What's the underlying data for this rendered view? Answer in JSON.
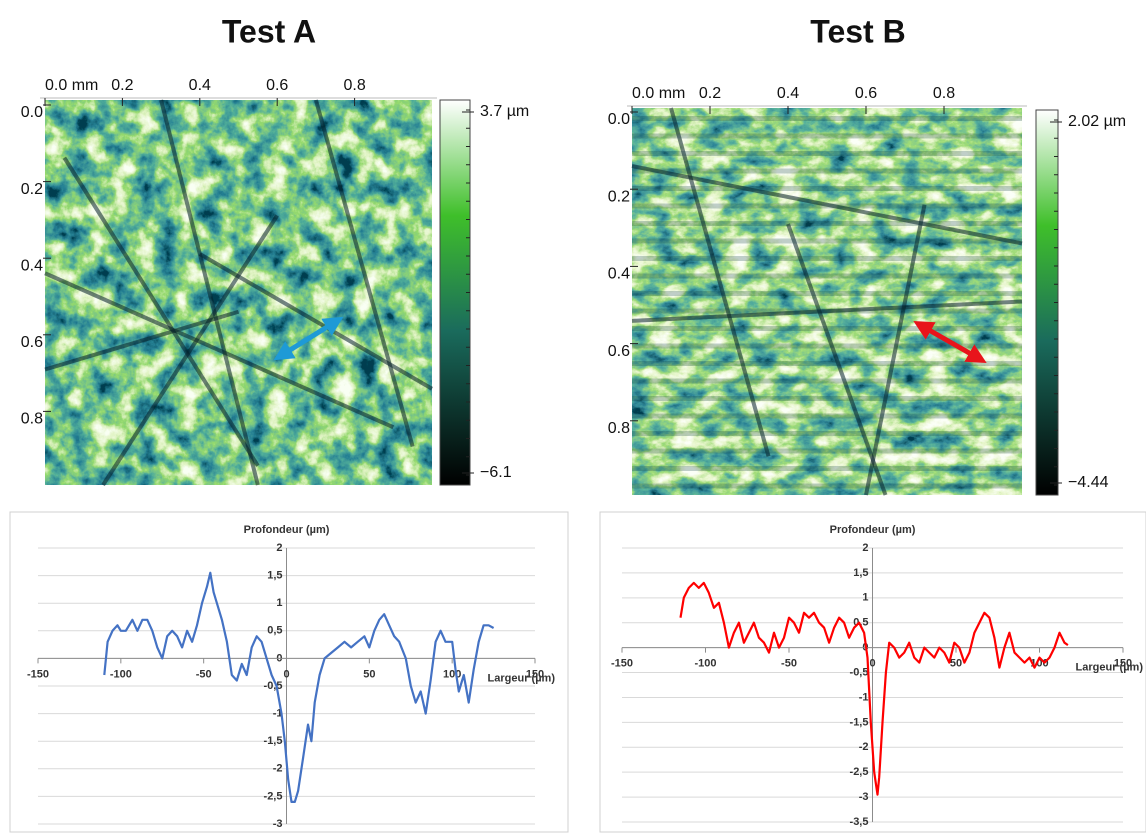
{
  "chart_data": [
    {
      "type": "surface",
      "title": "Test A",
      "xlim": [
        0,
        1
      ],
      "xticks": [
        {
          "value": 0,
          "label": "0.0 mm"
        },
        0.2,
        0.4,
        0.6,
        0.8
      ],
      "ylim": [
        0,
        1
      ],
      "yticks": [
        {
          "value": 0,
          "label": "0.0"
        },
        0.2,
        0.4,
        0.6,
        0.8
      ],
      "y_inverted": true,
      "clim": [
        -6.1,
        3.7
      ],
      "colorbar_ticks": [
        {
          "value": 3.7,
          "label": "3.7 µm"
        },
        {
          "value": -6.1,
          "label": "−6.1"
        }
      ]
    },
    {
      "type": "surface",
      "title": "Test B",
      "xlim": [
        0,
        1
      ],
      "xticks": [
        {
          "value": 0,
          "label": "0.0 mm"
        },
        0.2,
        0.4,
        0.6,
        0.8
      ],
      "ylim": [
        0,
        1
      ],
      "yticks": [
        {
          "value": 0,
          "label": "0.0"
        },
        0.2,
        0.4,
        0.6,
        0.8
      ],
      "y_inverted": true,
      "clim": [
        -4.44,
        2.02
      ],
      "colorbar_ticks": [
        {
          "value": 2.02,
          "label": "2.02 µm"
        },
        {
          "value": -4.44,
          "label": "−4.44"
        }
      ]
    },
    {
      "type": "line",
      "title": "Profondeur (µm)",
      "xlabel": "Largeur (µm)",
      "color": "#4472c4",
      "grid": true,
      "xlim": [
        -150,
        150
      ],
      "xticks": [
        -150,
        -100,
        -50,
        0,
        50,
        100,
        150
      ],
      "ylim": [
        -3,
        2
      ],
      "yticks": [
        2,
        {
          "value": 1.5,
          "label": "1,5"
        },
        1,
        {
          "value": 0.5,
          "label": "0,5"
        },
        0,
        {
          "value": -0.5,
          "label": "-0,5"
        },
        -1,
        {
          "value": -1.5,
          "label": "-1,5"
        },
        -2,
        {
          "value": -2.5,
          "label": "-2,5"
        },
        -3
      ],
      "x": [
        -110,
        -108,
        -105,
        -102,
        -100,
        -97,
        -93,
        -90,
        -87,
        -84,
        -81,
        -78,
        -75,
        -72,
        -69,
        -66,
        -63,
        -60,
        -57,
        -54,
        -51,
        -48,
        -46,
        -44,
        -42,
        -39,
        -36,
        -33,
        -30,
        -27,
        -24,
        -21,
        -18,
        -15,
        -12,
        -9,
        -6,
        -3,
        -1,
        1,
        3,
        5,
        7,
        10,
        13,
        15,
        17,
        20,
        23,
        27,
        31,
        35,
        39,
        43,
        47,
        50,
        53,
        56,
        59,
        62,
        65,
        68,
        72,
        75,
        78,
        81,
        84,
        87,
        90,
        93,
        96,
        100,
        102,
        104,
        107,
        110,
        113,
        116,
        119,
        122,
        125
      ],
      "values": [
        -0.3,
        0.3,
        0.5,
        0.6,
        0.5,
        0.5,
        0.7,
        0.5,
        0.7,
        0.7,
        0.5,
        0.2,
        0.0,
        0.4,
        0.5,
        0.4,
        0.2,
        0.5,
        0.3,
        0.6,
        1.0,
        1.3,
        1.55,
        1.2,
        1.0,
        0.7,
        0.3,
        -0.3,
        -0.4,
        -0.1,
        -0.3,
        0.2,
        0.4,
        0.3,
        0.0,
        -0.3,
        -0.5,
        -1.0,
        -1.5,
        -2.2,
        -2.6,
        -2.6,
        -2.4,
        -1.8,
        -1.2,
        -1.5,
        -0.8,
        -0.3,
        0.0,
        0.1,
        0.2,
        0.3,
        0.2,
        0.3,
        0.4,
        0.2,
        0.5,
        0.7,
        0.8,
        0.6,
        0.4,
        0.3,
        0.0,
        -0.5,
        -0.8,
        -0.6,
        -1.0,
        -0.4,
        0.3,
        0.5,
        0.3,
        0.3,
        -0.2,
        -0.6,
        -0.3,
        -0.8,
        -0.2,
        0.3,
        0.6,
        0.6,
        0.55
      ]
    },
    {
      "type": "line",
      "title": "Profondeur (µm)",
      "xlabel": "Largeur (µm)",
      "color": "#ff0000",
      "grid": true,
      "xlim": [
        -150,
        150
      ],
      "xticks": [
        -150,
        -100,
        -50,
        0,
        50,
        100,
        150
      ],
      "ylim": [
        -3.5,
        2
      ],
      "yticks": [
        2,
        {
          "value": 1.5,
          "label": "1,5"
        },
        1,
        {
          "value": 0.5,
          "label": "0,5"
        },
        0,
        {
          "value": -0.5,
          "label": "-0,5"
        },
        -1,
        {
          "value": -1.5,
          "label": "-1,5"
        },
        -2,
        {
          "value": -2.5,
          "label": "-2,5"
        },
        -3,
        {
          "value": -3.5,
          "label": "-3,5"
        }
      ],
      "x": [
        -115,
        -113,
        -110,
        -107,
        -104,
        -101,
        -98,
        -95,
        -92,
        -89,
        -86,
        -83,
        -80,
        -77,
        -74,
        -71,
        -68,
        -65,
        -62,
        -59,
        -56,
        -53,
        -50,
        -47,
        -44,
        -41,
        -38,
        -35,
        -32,
        -29,
        -26,
        -23,
        -20,
        -17,
        -14,
        -11,
        -8,
        -5,
        -3,
        -1,
        1,
        3,
        4,
        6,
        8,
        10,
        13,
        16,
        19,
        22,
        25,
        28,
        31,
        34,
        37,
        40,
        43,
        46,
        49,
        52,
        55,
        58,
        61,
        64,
        67,
        70,
        73,
        76,
        79,
        82,
        85,
        88,
        91,
        94,
        97,
        100,
        103,
        106,
        109,
        112,
        115,
        117
      ],
      "values": [
        0.6,
        1.0,
        1.2,
        1.3,
        1.2,
        1.3,
        1.1,
        0.8,
        0.9,
        0.5,
        0.0,
        0.3,
        0.5,
        0.1,
        0.3,
        0.5,
        0.2,
        0.1,
        -0.1,
        0.3,
        0.0,
        0.2,
        0.6,
        0.5,
        0.3,
        0.7,
        0.6,
        0.7,
        0.5,
        0.4,
        0.1,
        0.4,
        0.6,
        0.5,
        0.2,
        0.4,
        0.5,
        0.3,
        -0.2,
        -1.5,
        -2.5,
        -2.95,
        -2.6,
        -1.5,
        -0.5,
        0.1,
        0.0,
        -0.2,
        -0.1,
        0.1,
        -0.2,
        -0.3,
        0.0,
        -0.1,
        -0.2,
        0.0,
        -0.1,
        -0.3,
        0.1,
        0.0,
        -0.3,
        -0.1,
        0.3,
        0.5,
        0.7,
        0.6,
        0.2,
        -0.4,
        0.0,
        0.3,
        -0.1,
        -0.2,
        -0.3,
        -0.2,
        -0.4,
        -0.2,
        -0.3,
        -0.2,
        0.0,
        0.3,
        0.1,
        0.05
      ]
    }
  ]
}
